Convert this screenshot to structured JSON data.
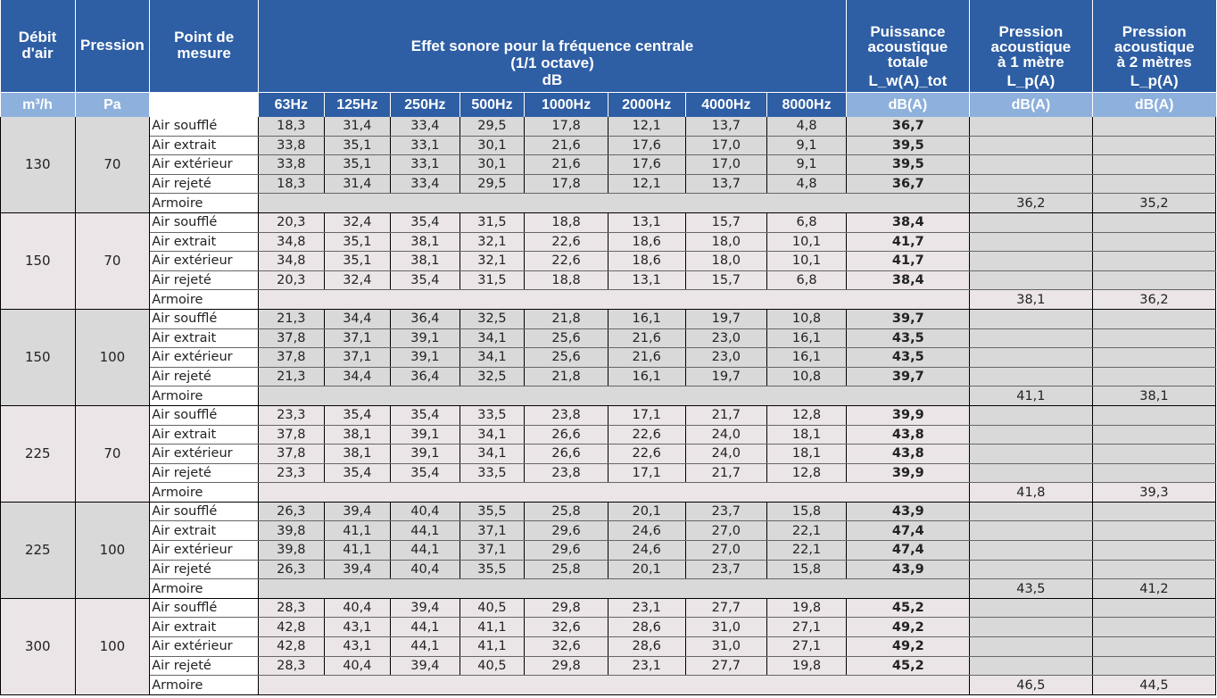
{
  "header": {
    "debit": "Débit d'air",
    "debit_l1": "Débit",
    "debit_l2": "d'air",
    "pression": "Pression",
    "point_l1": "Point de",
    "point_l2": "mesure",
    "effet_l1": "Effet sonore pour la fréquence centrale",
    "effet_l2": "(1/1 octave)",
    "effet_l3": "dB",
    "puiss_l1": "Puissance",
    "puiss_l2": "acoustique",
    "puiss_l3": "totale",
    "puiss_sym": "L_w(A)_tot",
    "p1_l1": "Pression",
    "p1_l2": "acoustique",
    "p1_l3": "à 1 mètre",
    "p1_sym": "L_p(A)",
    "p2_l1": "Pression",
    "p2_l2": "acoustique",
    "p2_l3": "à 2 mètres",
    "p2_sym": "L_p(A)"
  },
  "units": {
    "debit": "m³/h",
    "pression": "Pa",
    "frequencies": [
      "63Hz",
      "125Hz",
      "250Hz",
      "500Hz",
      "1000Hz",
      "2000Hz",
      "4000Hz",
      "8000Hz"
    ],
    "puiss": "dB(A)",
    "p1": "dB(A)",
    "p2": "dB(A)"
  },
  "groups": [
    {
      "debit": "130",
      "pression": "70",
      "rows": [
        {
          "point": "Air soufflé",
          "values": [
            "18,3",
            "31,4",
            "33,4",
            "29,5",
            "17,8",
            "12,1",
            "13,7",
            "4,8"
          ],
          "total": "36,7"
        },
        {
          "point": "Air extrait",
          "values": [
            "33,8",
            "35,1",
            "33,1",
            "30,1",
            "21,6",
            "17,6",
            "17,0",
            "9,1"
          ],
          "total": "39,5"
        },
        {
          "point": "Air extérieur",
          "values": [
            "33,8",
            "35,1",
            "33,1",
            "30,1",
            "21,6",
            "17,6",
            "17,0",
            "9,1"
          ],
          "total": "39,5"
        },
        {
          "point": "Air rejeté",
          "values": [
            "18,3",
            "31,4",
            "33,4",
            "29,5",
            "17,8",
            "12,1",
            "13,7",
            "4,8"
          ],
          "total": "36,7"
        }
      ],
      "armoire": {
        "point": "Armoire",
        "p1": "36,2",
        "p2": "35,2"
      }
    },
    {
      "debit": "150",
      "pression": "70",
      "rows": [
        {
          "point": "Air soufflé",
          "values": [
            "20,3",
            "32,4",
            "35,4",
            "31,5",
            "18,8",
            "13,1",
            "15,7",
            "6,8"
          ],
          "total": "38,4"
        },
        {
          "point": "Air extrait",
          "values": [
            "34,8",
            "35,1",
            "38,1",
            "32,1",
            "22,6",
            "18,6",
            "18,0",
            "10,1"
          ],
          "total": "41,7"
        },
        {
          "point": "Air extérieur",
          "values": [
            "34,8",
            "35,1",
            "38,1",
            "32,1",
            "22,6",
            "18,6",
            "18,0",
            "10,1"
          ],
          "total": "41,7"
        },
        {
          "point": "Air rejeté",
          "values": [
            "20,3",
            "32,4",
            "35,4",
            "31,5",
            "18,8",
            "13,1",
            "15,7",
            "6,8"
          ],
          "total": "38,4"
        }
      ],
      "armoire": {
        "point": "Armoire",
        "p1": "38,1",
        "p2": "36,2"
      }
    },
    {
      "debit": "150",
      "pression": "100",
      "rows": [
        {
          "point": "Air soufflé",
          "values": [
            "21,3",
            "34,4",
            "36,4",
            "32,5",
            "21,8",
            "16,1",
            "19,7",
            "10,8"
          ],
          "total": "39,7"
        },
        {
          "point": "Air extrait",
          "values": [
            "37,8",
            "37,1",
            "39,1",
            "34,1",
            "25,6",
            "21,6",
            "23,0",
            "16,1"
          ],
          "total": "43,5"
        },
        {
          "point": "Air extérieur",
          "values": [
            "37,8",
            "37,1",
            "39,1",
            "34,1",
            "25,6",
            "21,6",
            "23,0",
            "16,1"
          ],
          "total": "43,5"
        },
        {
          "point": "Air rejeté",
          "values": [
            "21,3",
            "34,4",
            "36,4",
            "32,5",
            "21,8",
            "16,1",
            "19,7",
            "10,8"
          ],
          "total": "39,7"
        }
      ],
      "armoire": {
        "point": "Armoire",
        "p1": "41,1",
        "p2": "38,1"
      }
    },
    {
      "debit": "225",
      "pression": "70",
      "rows": [
        {
          "point": "Air soufflé",
          "values": [
            "23,3",
            "35,4",
            "35,4",
            "33,5",
            "23,8",
            "17,1",
            "21,7",
            "12,8"
          ],
          "total": "39,9"
        },
        {
          "point": "Air extrait",
          "values": [
            "37,8",
            "38,1",
            "39,1",
            "34,1",
            "26,6",
            "22,6",
            "24,0",
            "18,1"
          ],
          "total": "43,8"
        },
        {
          "point": "Air extérieur",
          "values": [
            "37,8",
            "38,1",
            "39,1",
            "34,1",
            "26,6",
            "22,6",
            "24,0",
            "18,1"
          ],
          "total": "43,8"
        },
        {
          "point": "Air rejeté",
          "values": [
            "23,3",
            "35,4",
            "35,4",
            "33,5",
            "23,8",
            "17,1",
            "21,7",
            "12,8"
          ],
          "total": "39,9"
        }
      ],
      "armoire": {
        "point": "Armoire",
        "p1": "41,8",
        "p2": "39,3"
      }
    },
    {
      "debit": "225",
      "pression": "100",
      "rows": [
        {
          "point": "Air soufflé",
          "values": [
            "26,3",
            "39,4",
            "40,4",
            "35,5",
            "25,8",
            "20,1",
            "23,7",
            "15,8"
          ],
          "total": "43,9"
        },
        {
          "point": "Air extrait",
          "values": [
            "39,8",
            "41,1",
            "44,1",
            "37,1",
            "29,6",
            "24,6",
            "27,0",
            "22,1"
          ],
          "total": "47,4"
        },
        {
          "point": "Air extérieur",
          "values": [
            "39,8",
            "41,1",
            "44,1",
            "37,1",
            "29,6",
            "24,6",
            "27,0",
            "22,1"
          ],
          "total": "47,4"
        },
        {
          "point": "Air rejeté",
          "values": [
            "26,3",
            "39,4",
            "40,4",
            "35,5",
            "25,8",
            "20,1",
            "23,7",
            "15,8"
          ],
          "total": "43,9"
        }
      ],
      "armoire": {
        "point": "Armoire",
        "p1": "43,5",
        "p2": "41,2"
      }
    },
    {
      "debit": "300",
      "pression": "100",
      "rows": [
        {
          "point": "Air soufflé",
          "values": [
            "28,3",
            "40,4",
            "39,4",
            "40,5",
            "29,8",
            "23,1",
            "27,7",
            "19,8"
          ],
          "total": "45,2"
        },
        {
          "point": "Air extrait",
          "values": [
            "42,8",
            "43,1",
            "44,1",
            "41,1",
            "32,6",
            "28,6",
            "31,0",
            "27,1"
          ],
          "total": "49,2"
        },
        {
          "point": "Air extérieur",
          "values": [
            "42,8",
            "43,1",
            "44,1",
            "41,1",
            "32,6",
            "28,6",
            "31,0",
            "27,1"
          ],
          "total": "49,2"
        },
        {
          "point": "Air rejeté",
          "values": [
            "28,3",
            "40,4",
            "39,4",
            "40,5",
            "29,8",
            "23,1",
            "27,7",
            "19,8"
          ],
          "total": "45,2"
        }
      ],
      "armoire": {
        "point": "Armoire",
        "p1": "46,5",
        "p2": "44,5"
      }
    }
  ]
}
